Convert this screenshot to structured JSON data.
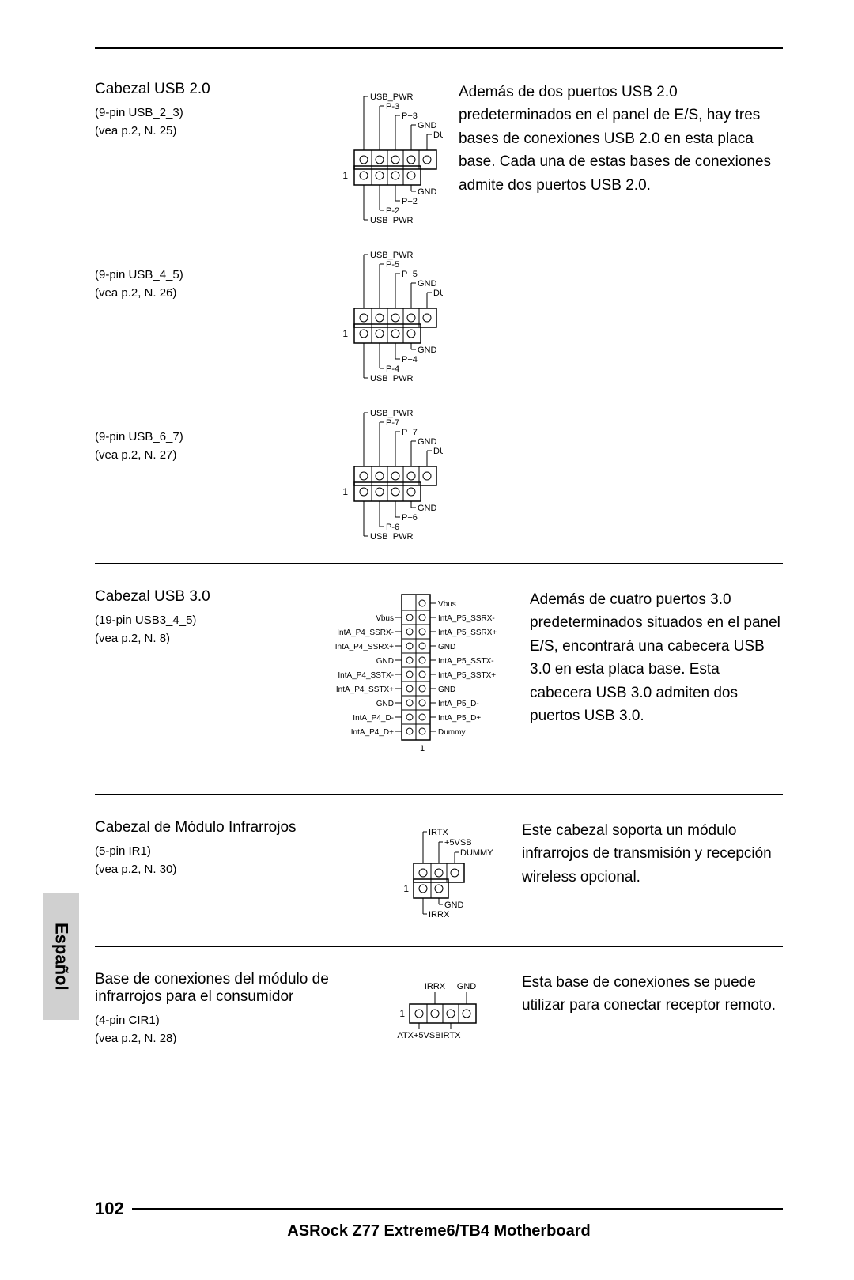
{
  "colors": {
    "text": "#000000",
    "bg": "#ffffff",
    "tab_bg": "#d0d0d0",
    "line": "#000000"
  },
  "typography": {
    "title_size": 19,
    "sub_size": 15,
    "body_size": 19,
    "footer_title_size": 20,
    "page_num_size": 22
  },
  "language_tab": "Español",
  "footer": {
    "page": "102",
    "title": "ASRock  Z77 Extreme6/TB4  Motherboard"
  },
  "usb20": {
    "title": "Cabezal USB 2.0",
    "body": "Además de dos puertos USB 2.0 predeterminados en el panel de E/S, hay tres bases de conexiones USB 2.0 en esta placa base. Cada una de estas bases de conexiones admite dos puertos USB 2.0.",
    "variants": [
      {
        "ref1": "(9-pin USB_2_3)",
        "ref2": "(vea p.2, N. 25)",
        "top_labels": [
          "USB_PWR",
          "P-3",
          "P+3",
          "GND",
          "DUMMY"
        ],
        "bot_labels": [
          "GND",
          "P+2",
          "P-2",
          "USB_PWR"
        ]
      },
      {
        "ref1": "(9-pin USB_4_5)",
        "ref2": "(vea p.2, N. 26)",
        "top_labels": [
          "USB_PWR",
          "P-5",
          "P+5",
          "GND",
          "DUMMY"
        ],
        "bot_labels": [
          "GND",
          "P+4",
          "P-4",
          "USB_PWR"
        ]
      },
      {
        "ref1": "(9-pin USB_6_7)",
        "ref2": "(vea p.2, N. 27)",
        "top_labels": [
          "USB_PWR",
          "P-7",
          "P+7",
          "GND",
          "DUMMY"
        ],
        "bot_labels": [
          "GND",
          "P+6",
          "P-6",
          "USB_PWR"
        ]
      }
    ]
  },
  "usb30": {
    "title": "Cabezal USB 3.0",
    "ref1": "(19-pin USB3_4_5)",
    "ref2": "(vea p.2, N. 8)",
    "body": "Además de cuatro puertos 3.0 predeterminados situados en el panel E/S, encontrará una cabecera USB 3.0 en esta placa base. Esta cabecera USB 3.0 admiten dos puertos USB 3.0.",
    "right_labels": [
      "Vbus",
      "IntA_P5_SSRX-",
      "IntA_P5_SSRX+",
      "GND",
      "IntA_P5_SSTX-",
      "IntA_P5_SSTX+",
      "GND",
      "IntA_P5_D-",
      "IntA_P5_D+",
      "Dummy"
    ],
    "left_labels": [
      "Vbus",
      "IntA_P4_SSRX-",
      "IntA_P4_SSRX+",
      "GND",
      "IntA_P4_SSTX-",
      "IntA_P4_SSTX+",
      "GND",
      "IntA_P4_D-",
      "IntA_P4_D+"
    ]
  },
  "ir": {
    "title": "Cabezal de Módulo Infrarrojos",
    "ref1": "(5-pin IR1)",
    "ref2": "(vea p.2, N. 30)",
    "body": "Este cabezal soporta un módulo infrarrojos de transmisión y recepción wireless opcional.",
    "top_labels": [
      "IRTX",
      "+5VSB",
      "DUMMY"
    ],
    "bot_labels": [
      "GND",
      "IRRX"
    ]
  },
  "cir": {
    "title": "Base de conexiones del módulo de infrarrojos para el consumidor",
    "ref1": "(4-pin CIR1)",
    "ref2": "(vea p.2, N. 28)",
    "body": "Esta base de conexiones se puede utilizar para conectar receptor remoto.",
    "top_labels": [
      "IRRX",
      "GND"
    ],
    "bot_labels": [
      "ATX+5VSB",
      "IRTX"
    ]
  }
}
